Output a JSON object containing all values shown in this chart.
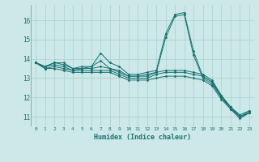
{
  "xlabel": "Humidex (Indice chaleur)",
  "ylabel": "",
  "xlim": [
    -0.5,
    23.5
  ],
  "ylim": [
    10.5,
    16.8
  ],
  "yticks": [
    11,
    12,
    13,
    14,
    15,
    16
  ],
  "xticks": [
    0,
    1,
    2,
    3,
    4,
    5,
    6,
    7,
    8,
    9,
    10,
    11,
    12,
    13,
    14,
    15,
    16,
    17,
    18,
    19,
    20,
    21,
    22,
    23
  ],
  "background_color": "#cce8e8",
  "line_color": "#1a7070",
  "grid_color": "#aad0d0",
  "series": [
    [
      13.8,
      13.6,
      13.8,
      13.8,
      13.5,
      13.6,
      13.6,
      14.3,
      13.8,
      13.6,
      13.2,
      13.2,
      13.3,
      13.4,
      15.3,
      16.3,
      16.4,
      14.4,
      13.1,
      12.8,
      12.1,
      11.5,
      11.0,
      11.2
    ],
    [
      13.8,
      13.6,
      13.8,
      13.7,
      13.5,
      13.5,
      13.6,
      13.9,
      13.5,
      13.4,
      13.1,
      13.1,
      13.2,
      13.3,
      15.1,
      16.2,
      16.3,
      14.2,
      13.0,
      12.7,
      12.0,
      11.5,
      11.0,
      11.2
    ],
    [
      13.8,
      13.6,
      13.7,
      13.6,
      13.4,
      13.5,
      13.5,
      13.6,
      13.5,
      13.3,
      13.1,
      13.1,
      13.1,
      13.3,
      13.4,
      13.4,
      13.4,
      13.3,
      13.2,
      12.9,
      12.1,
      11.5,
      11.1,
      11.3
    ],
    [
      13.8,
      13.5,
      13.6,
      13.5,
      13.4,
      13.4,
      13.4,
      13.4,
      13.4,
      13.2,
      13.0,
      13.0,
      13.0,
      13.2,
      13.3,
      13.3,
      13.3,
      13.2,
      13.1,
      12.8,
      12.0,
      11.4,
      11.0,
      11.3
    ],
    [
      13.8,
      13.5,
      13.5,
      13.4,
      13.3,
      13.3,
      13.3,
      13.3,
      13.3,
      13.1,
      12.9,
      12.9,
      12.9,
      13.0,
      13.1,
      13.1,
      13.1,
      13.0,
      12.9,
      12.6,
      11.9,
      11.4,
      10.9,
      11.2
    ]
  ]
}
